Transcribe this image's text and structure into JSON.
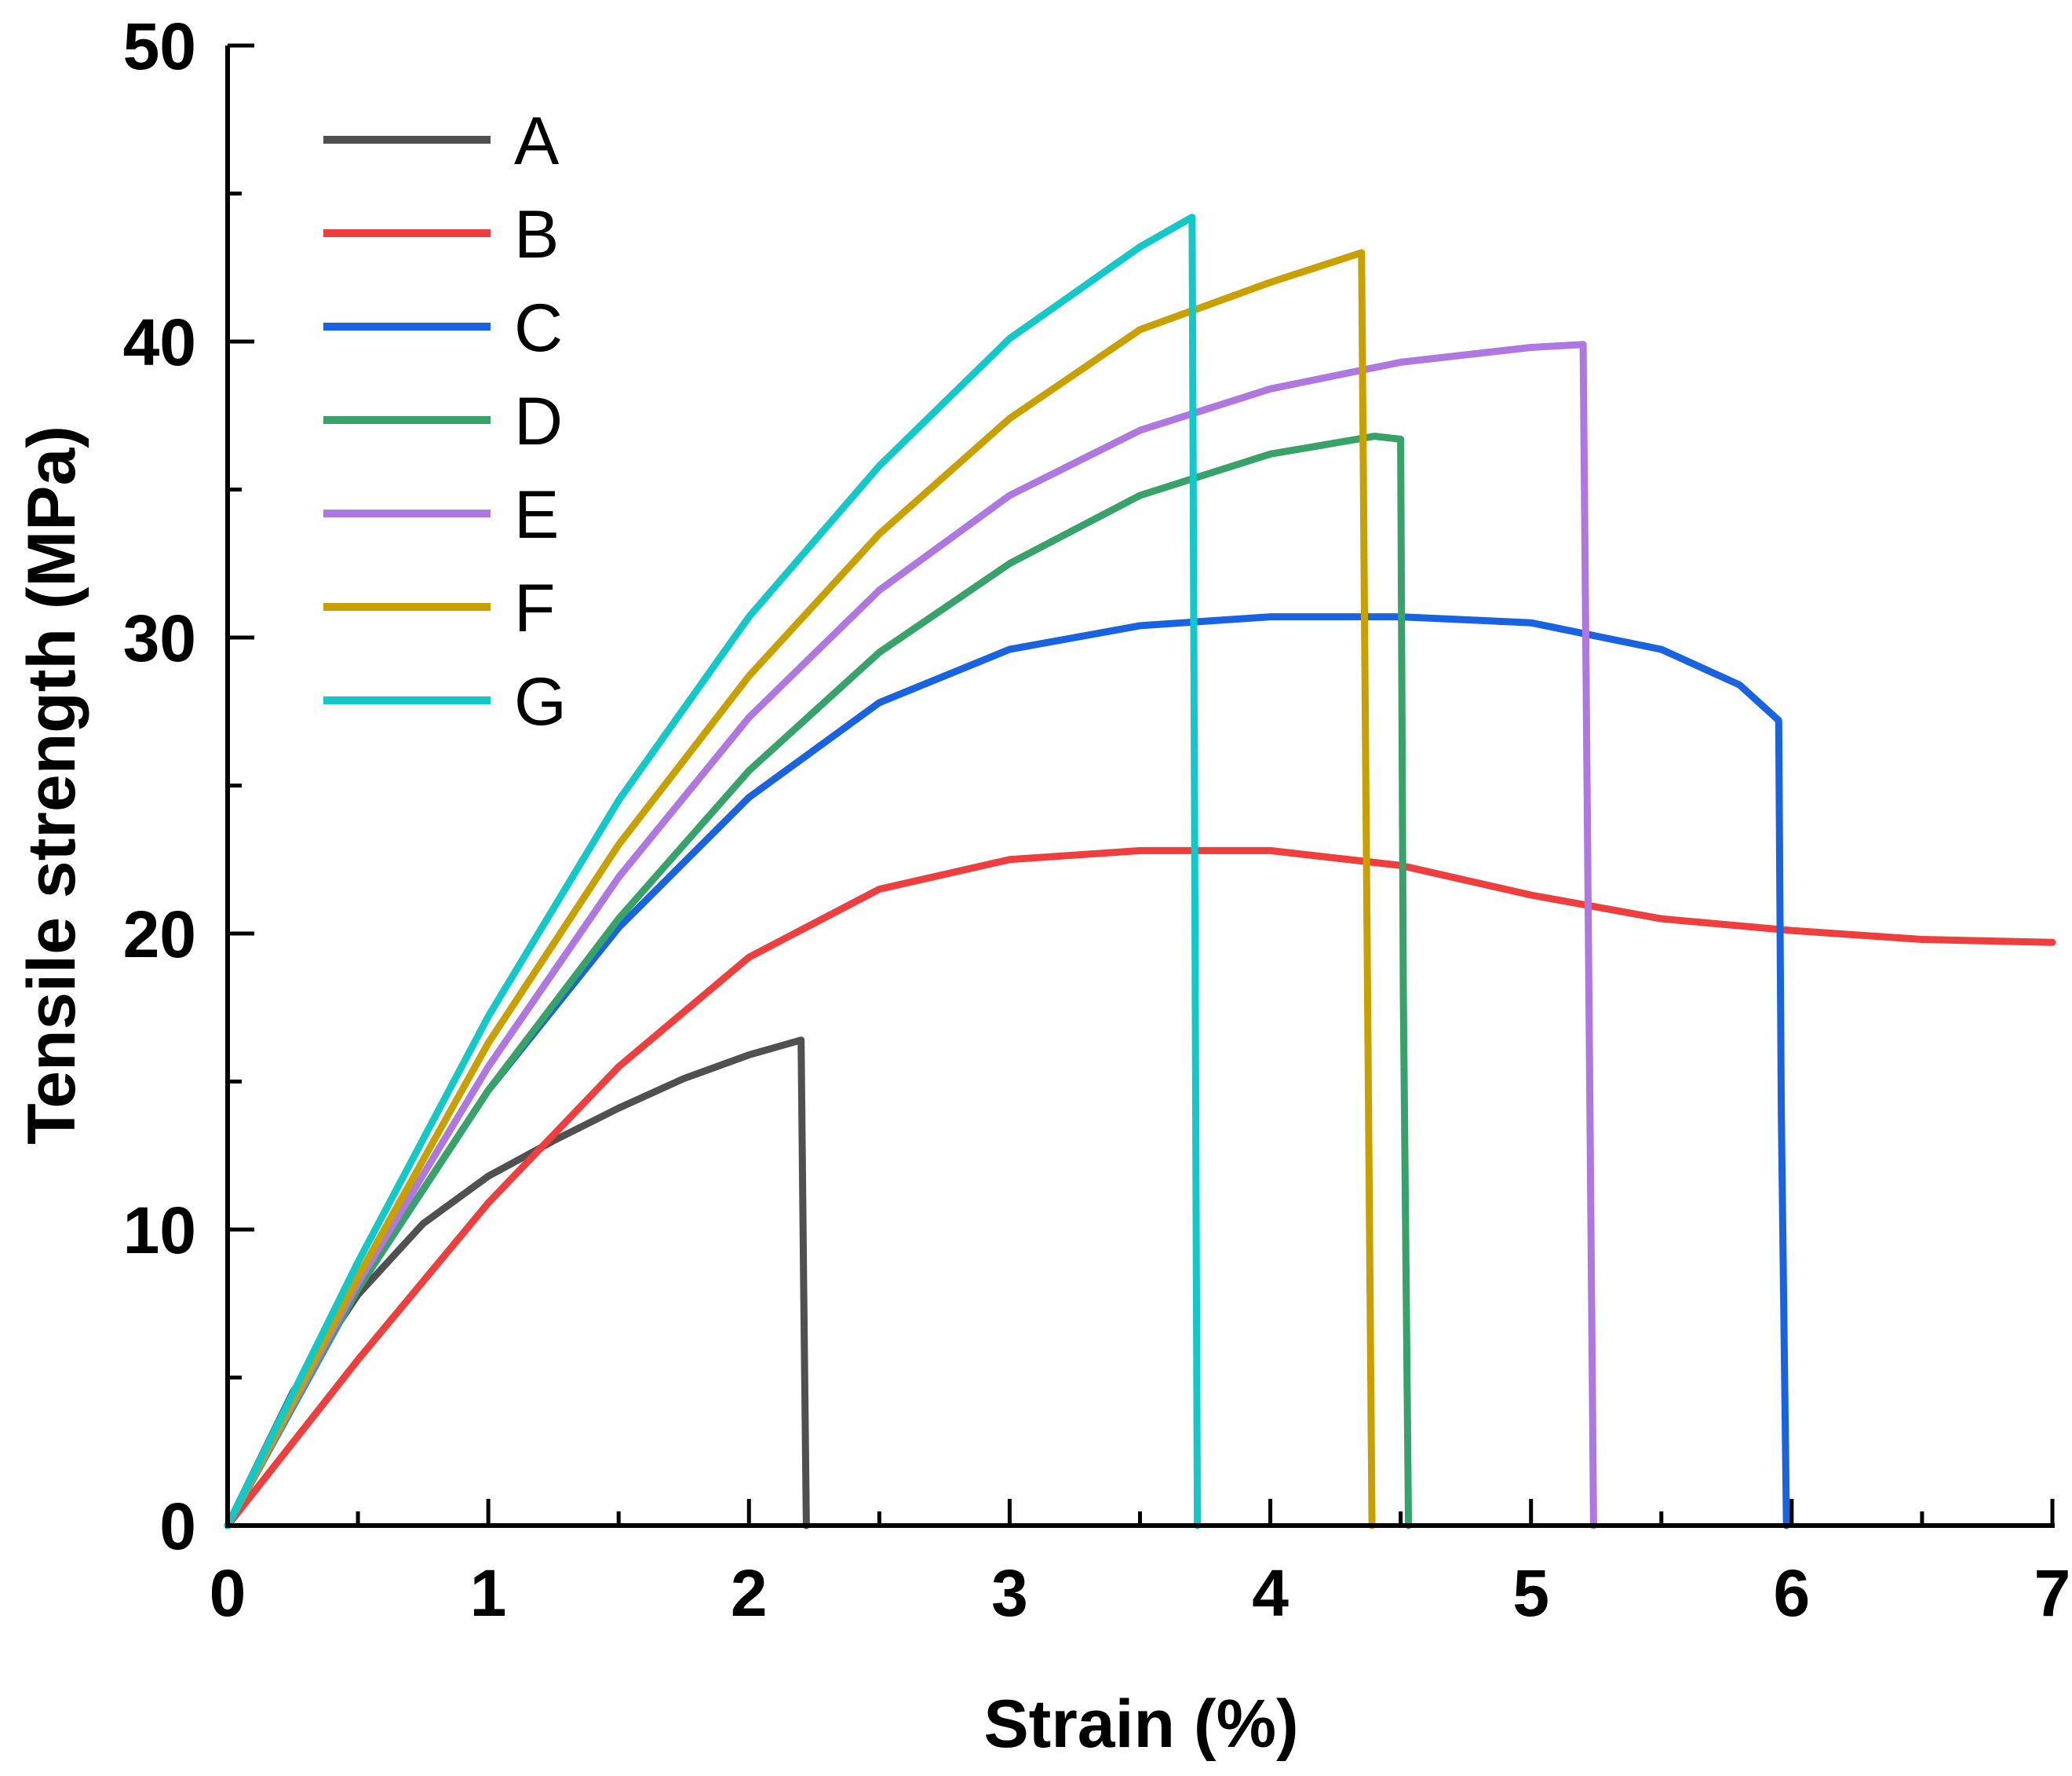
{
  "chart_data": {
    "type": "line",
    "title": "",
    "xlabel": "Strain (%)",
    "ylabel": "Tensile strength (MPa)",
    "xlim": [
      0,
      7
    ],
    "ylim": [
      0,
      50
    ],
    "xticks": [
      0,
      1,
      2,
      3,
      4,
      5,
      6,
      7
    ],
    "yticks": [
      0,
      10,
      20,
      30,
      40,
      50
    ],
    "x_tick_labels": [
      "0",
      "1",
      "2",
      "3",
      "4",
      "5",
      "6",
      "7"
    ],
    "y_tick_labels": [
      "0",
      "10",
      "20",
      "30",
      "40",
      "50"
    ],
    "grid": false,
    "legend_position": "top-left",
    "series": [
      {
        "name": "A",
        "color": "#505050",
        "x": [
          0,
          0.25,
          0.5,
          0.75,
          1.0,
          1.25,
          1.5,
          1.75,
          2.0,
          2.2,
          2.21,
          2.22
        ],
        "y": [
          0,
          4.5,
          7.8,
          10.2,
          11.8,
          13.0,
          14.1,
          15.1,
          15.9,
          16.4,
          8.0,
          0
        ]
      },
      {
        "name": "B",
        "color": "#EE3F3F",
        "x": [
          0,
          0.5,
          1.0,
          1.5,
          2.0,
          2.5,
          3.0,
          3.5,
          4.0,
          4.5,
          5.0,
          5.5,
          6.0,
          6.5,
          7.0
        ],
        "y": [
          0,
          5.6,
          10.9,
          15.5,
          19.2,
          21.5,
          22.5,
          22.8,
          22.8,
          22.3,
          21.3,
          20.5,
          20.1,
          19.8,
          19.7
        ]
      },
      {
        "name": "C",
        "color": "#1A63E0",
        "x": [
          0,
          0.5,
          1.0,
          1.5,
          2.0,
          2.5,
          3.0,
          3.5,
          4.0,
          4.5,
          5.0,
          5.5,
          5.8,
          5.95,
          5.96,
          5.98
        ],
        "y": [
          0,
          8.0,
          14.7,
          20.2,
          24.6,
          27.8,
          29.6,
          30.4,
          30.7,
          30.7,
          30.5,
          29.6,
          28.4,
          27.2,
          14.0,
          0
        ]
      },
      {
        "name": "D",
        "color": "#37A36A",
        "x": [
          0,
          0.5,
          1.0,
          1.5,
          2.0,
          2.5,
          3.0,
          3.5,
          4.0,
          4.4,
          4.5,
          4.51,
          4.53
        ],
        "y": [
          0,
          8.0,
          14.7,
          20.5,
          25.5,
          29.5,
          32.5,
          34.8,
          36.2,
          36.8,
          36.7,
          18.0,
          0
        ]
      },
      {
        "name": "E",
        "color": "#AE78E0",
        "x": [
          0,
          0.5,
          1.0,
          1.5,
          2.0,
          2.5,
          3.0,
          3.5,
          4.0,
          4.5,
          5.0,
          5.2,
          5.22,
          5.24
        ],
        "y": [
          0,
          8.2,
          15.5,
          21.9,
          27.3,
          31.6,
          34.8,
          37.0,
          38.4,
          39.3,
          39.8,
          39.9,
          20.0,
          0
        ]
      },
      {
        "name": "F",
        "color": "#C8A000",
        "x": [
          0,
          0.5,
          1.0,
          1.5,
          2.0,
          2.5,
          3.0,
          3.5,
          4.0,
          4.35,
          4.37,
          4.39
        ],
        "y": [
          0,
          8.4,
          16.3,
          23.0,
          28.7,
          33.5,
          37.4,
          40.4,
          42.0,
          43.0,
          21.0,
          0
        ]
      },
      {
        "name": "G",
        "color": "#12C8C8",
        "x": [
          0,
          0.5,
          1.0,
          1.5,
          2.0,
          2.5,
          3.0,
          3.5,
          3.7,
          3.71,
          3.72
        ],
        "y": [
          0,
          8.9,
          17.2,
          24.5,
          30.7,
          35.8,
          40.1,
          43.2,
          44.2,
          22.0,
          0
        ]
      }
    ]
  }
}
